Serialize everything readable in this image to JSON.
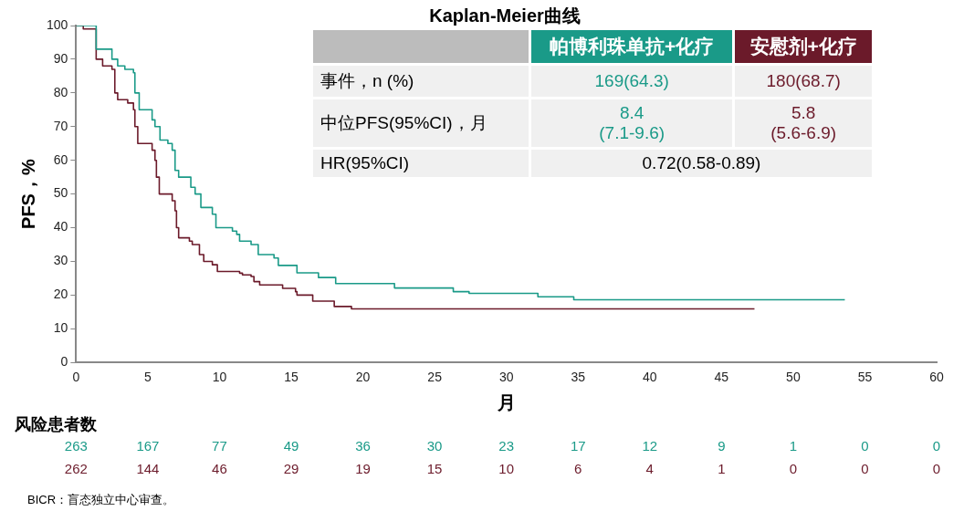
{
  "chart_data": {
    "type": "step",
    "title": "Kaplan-Meier曲线",
    "xlabel": "月",
    "ylabel": "PFS，%",
    "xlim": [
      0,
      60
    ],
    "xticks": [
      0,
      5,
      10,
      15,
      20,
      25,
      30,
      35,
      40,
      45,
      50,
      55,
      60
    ],
    "ylim": [
      0,
      100
    ],
    "yticks": [
      0,
      10,
      20,
      30,
      40,
      50,
      60,
      70,
      80,
      90,
      100
    ],
    "grid": false,
    "legend": "top right",
    "marker": "none",
    "line_style": "solid",
    "series": [
      {
        "name": "帕博利珠单抗+化疗",
        "color": "#1a9a88",
        "x": [
          0,
          1.4,
          2.5,
          2.9,
          3.4,
          4.0,
          4.1,
          4.4,
          5.3,
          5.5,
          5.85,
          6.4,
          6.7,
          6.9,
          7.15,
          8.0,
          8.3,
          8.7,
          9.5,
          9.75,
          10.9,
          11.2,
          11.4,
          12.2,
          12.7,
          13.8,
          14.1,
          15.4,
          16.9,
          18.1,
          22.2,
          26.3,
          27.4,
          32.2,
          34.7,
          53.6
        ],
        "values": [
          100,
          93,
          90,
          88,
          87,
          86,
          80,
          75,
          72,
          70,
          66,
          65,
          63,
          57,
          55,
          52,
          50,
          46,
          44,
          40,
          39,
          38,
          36,
          35,
          32,
          31,
          28.8,
          26.6,
          25.2,
          23.4,
          22.1,
          21,
          20.5,
          19.5,
          18.6,
          18.6
        ]
      },
      {
        "name": "安慰剂+化疗",
        "color": "#6b1a2a",
        "x": [
          0,
          0.5,
          1.4,
          1.85,
          2.5,
          2.7,
          2.9,
          3.6,
          4.0,
          4.1,
          4.3,
          5.3,
          5.5,
          5.6,
          5.8,
          6.7,
          6.9,
          7.0,
          7.15,
          7.9,
          8.1,
          8.6,
          8.9,
          9.5,
          9.85,
          11.4,
          11.6,
          12.2,
          12.4,
          12.8,
          14.4,
          15.3,
          15.4,
          16.5,
          18.0,
          19.2,
          47.3
        ],
        "values": [
          100,
          99,
          90,
          88,
          87,
          80,
          78,
          77,
          75,
          70,
          65,
          63,
          60,
          55,
          50,
          48,
          45,
          40,
          37,
          36,
          35,
          32,
          30,
          29,
          27,
          26.5,
          26,
          25.5,
          24,
          23,
          22,
          21,
          20,
          18.2,
          16.6,
          15.9,
          15.9
        ]
      }
    ],
    "annotations": [
      "风险患者数",
      "263",
      "167",
      "77",
      "49",
      "36",
      "30",
      "23",
      "17",
      "12",
      "9",
      "1",
      "0",
      "0",
      "262",
      "144",
      "46",
      "29",
      "19",
      "15",
      "10",
      "6",
      "4",
      "1",
      "0",
      "0",
      "0",
      "事件，n (%)",
      "169(64.3)",
      "180(68.7)",
      "中位PFS(95%CI)，月",
      "8.4\n(7.1-9.6)",
      "5.8\n(5.6-6.9)",
      "HR(95%CI)",
      "0.72(0.58-0.89)",
      "BICR：盲态独立中心审查。"
    ]
  }
}
